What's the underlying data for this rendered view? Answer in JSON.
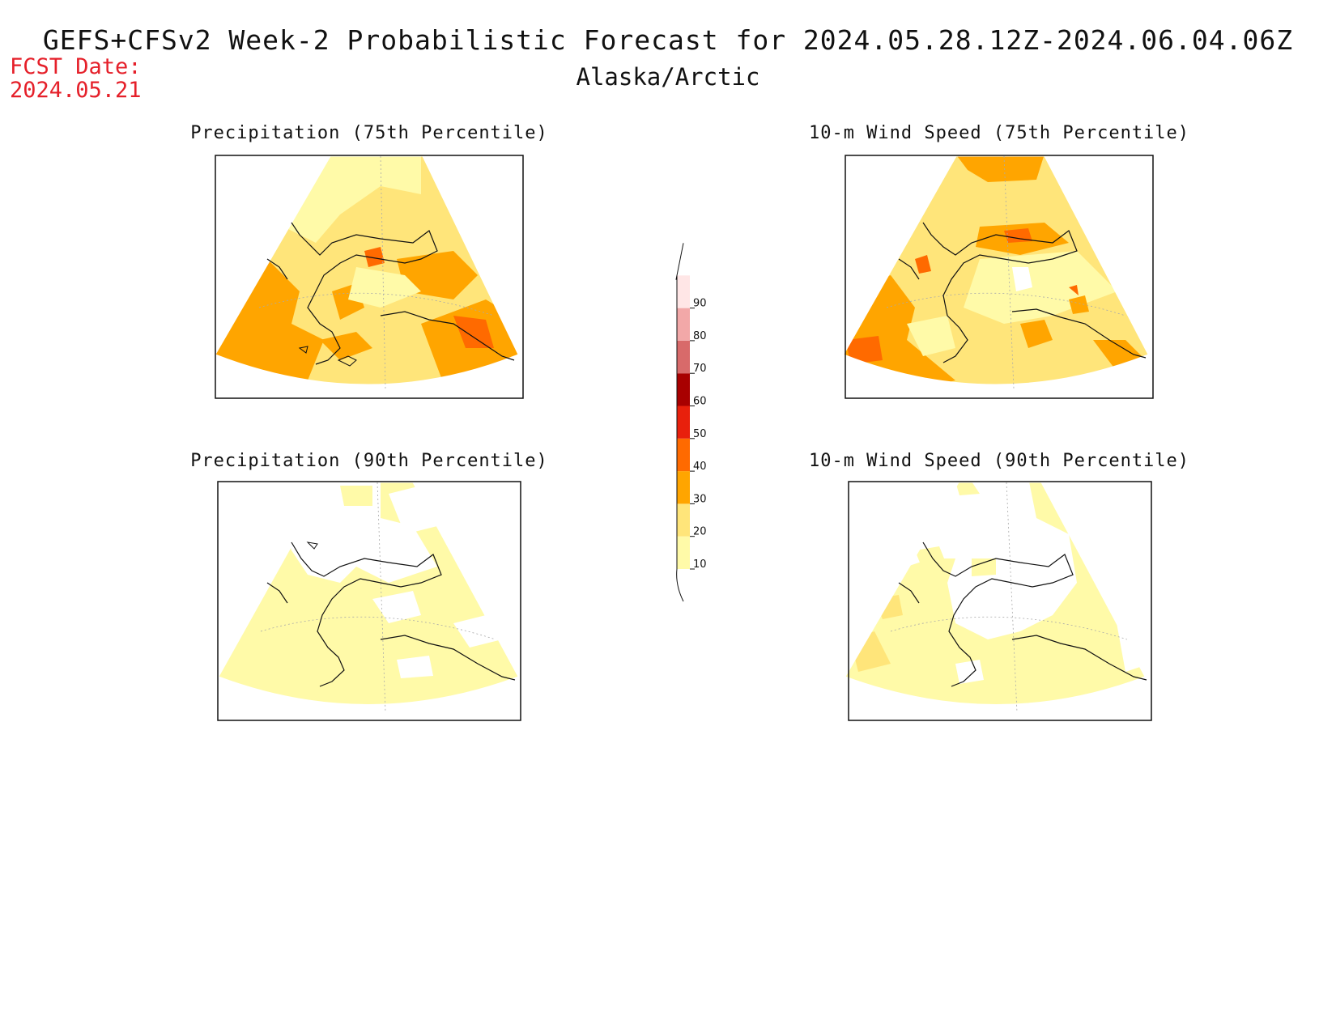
{
  "header": {
    "title": "GEFS+CFSv2 Week-2 Probabilistic Forecast for 2024.05.28.12Z-2024.06.04.06Z",
    "region": "Alaska/Arctic",
    "fcst_label": "FCST Date:",
    "fcst_date": "2024.05.21"
  },
  "panels": [
    {
      "title": "Precipitation (75th Percentile)"
    },
    {
      "title": "10-m Wind Speed (75th Percentile)"
    },
    {
      "title": "Precipitation (90th Percentile)"
    },
    {
      "title": "10-m Wind Speed (90th Percentile)"
    }
  ],
  "colorbar": {
    "levels": [
      10,
      20,
      30,
      40,
      50,
      60,
      70,
      80,
      90
    ],
    "colors": [
      "#fffaa8",
      "#ffe57a",
      "#ffa500",
      "#ff6a00",
      "#e8200c",
      "#a80000",
      "#d86a6a",
      "#f2a8a8",
      "#ffe6e6"
    ]
  },
  "chart_data": {
    "type": "heatmap",
    "legend_levels": [
      10,
      20,
      30,
      40,
      50,
      60,
      70,
      80,
      90
    ],
    "legend_placement": "center"
  }
}
